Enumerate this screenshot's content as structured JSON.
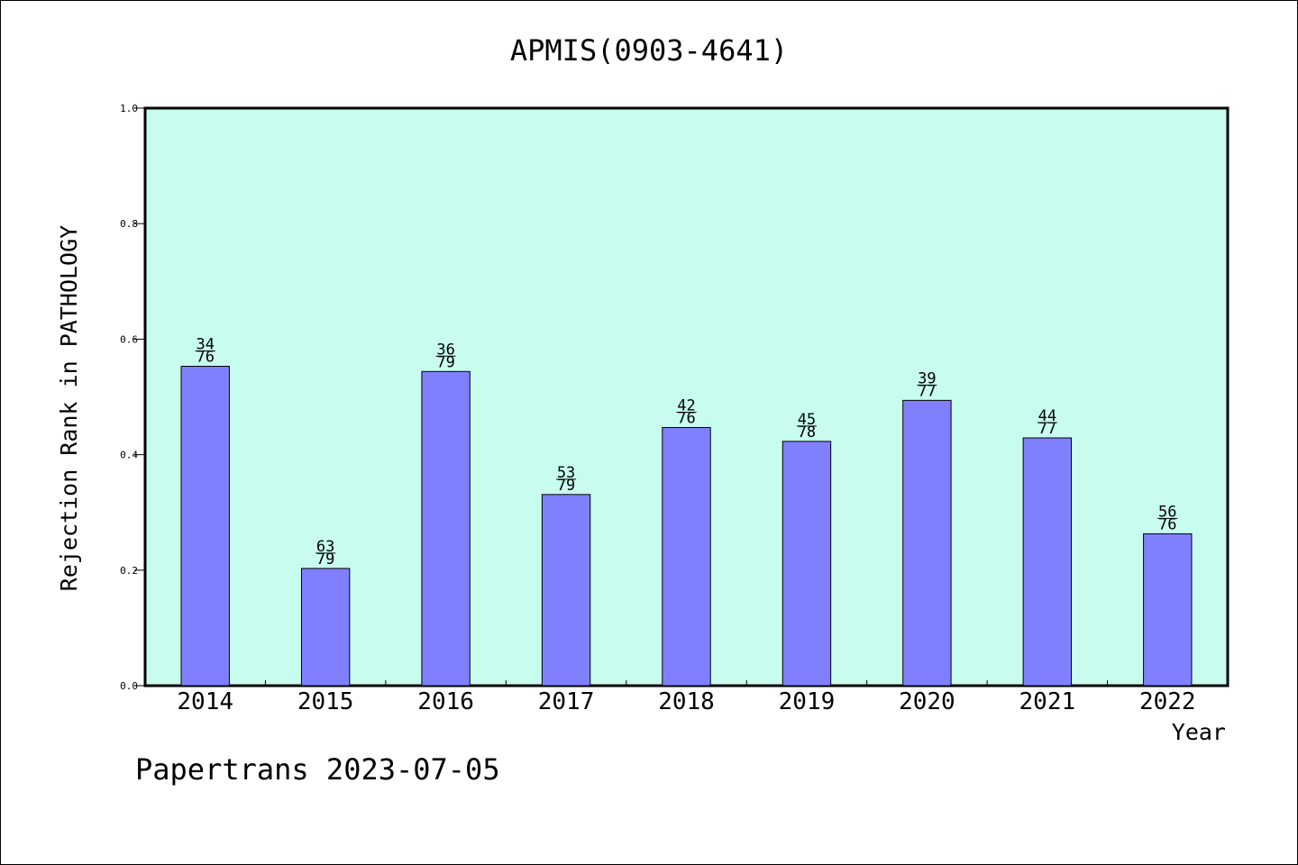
{
  "chart_data": {
    "type": "bar",
    "title": "APMIS(0903-4641)",
    "xlabel": "Year",
    "ylabel": "Rejection Rank in PATHOLOGY",
    "ylim": [
      0,
      1.0
    ],
    "yticks": [
      "0.0",
      "0.2",
      "0.4",
      "0.6",
      "0.8",
      "1.0"
    ],
    "categories": [
      "2014",
      "2015",
      "2016",
      "2017",
      "2018",
      "2019",
      "2020",
      "2021",
      "2022"
    ],
    "values": [
      0.553,
      0.203,
      0.544,
      0.331,
      0.447,
      0.423,
      0.494,
      0.429,
      0.263
    ],
    "labels": [
      {
        "rank": "34",
        "total": "76"
      },
      {
        "rank": "63",
        "total": "79"
      },
      {
        "rank": "36",
        "total": "79"
      },
      {
        "rank": "53",
        "total": "79"
      },
      {
        "rank": "42",
        "total": "76"
      },
      {
        "rank": "45",
        "total": "78"
      },
      {
        "rank": "39",
        "total": "77"
      },
      {
        "rank": "44",
        "total": "77"
      },
      {
        "rank": "56",
        "total": "76"
      }
    ],
    "colors": {
      "plot_background": "#c8fcef",
      "bar_fill": "#8080ff",
      "bar_stroke": "#000000"
    },
    "grid": false,
    "legend": "none"
  },
  "footer": {
    "text": "Papertrans 2023-07-05"
  }
}
